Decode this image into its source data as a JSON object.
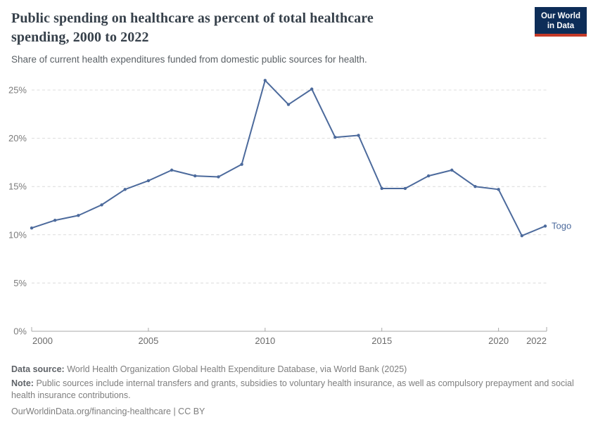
{
  "header": {
    "title_line1": "Public spending on healthcare as percent of total healthcare",
    "title_line2": "spending, 2000 to 2022",
    "subtitle": "Share of current health expenditures funded from domestic public sources for health."
  },
  "logo": {
    "line1": "Our World",
    "line2": "in Data",
    "bg_color": "#0d2d58",
    "accent_color": "#c53a28"
  },
  "chart_data": {
    "type": "line",
    "title": "Public spending on healthcare as percent of total healthcare spending, 2000 to 2022",
    "x": [
      2000,
      2001,
      2002,
      2003,
      2004,
      2005,
      2006,
      2007,
      2008,
      2009,
      2010,
      2011,
      2012,
      2013,
      2014,
      2015,
      2016,
      2017,
      2018,
      2019,
      2020,
      2021,
      2022
    ],
    "series": [
      {
        "name": "Togo",
        "color": "#4C6A9C",
        "values": [
          10.7,
          11.5,
          12.0,
          13.1,
          14.7,
          15.6,
          16.7,
          16.1,
          16.0,
          17.3,
          26.0,
          23.5,
          25.1,
          20.1,
          20.3,
          14.8,
          14.8,
          16.1,
          16.7,
          15.0,
          14.7,
          9.9,
          10.9
        ]
      }
    ],
    "unit": "%",
    "xlim": [
      2000,
      2022
    ],
    "ylim": [
      0,
      25
    ],
    "y_ticks": [
      0,
      5,
      10,
      15,
      20,
      25
    ],
    "y_tick_labels": [
      "0%",
      "5%",
      "10%",
      "15%",
      "20%",
      "25%"
    ],
    "x_ticks": [
      2000,
      2005,
      2010,
      2015,
      2020,
      2022
    ],
    "grid": "horizontal-dashed",
    "legend_position": "end-of-line",
    "colors": {
      "grid": "#dcdcdc",
      "axis": "#a8a8a8",
      "y_tick_label": "#7c7c7c",
      "x_tick_label": "#6b6b6b"
    }
  },
  "footer": {
    "source_label": "Data source:",
    "source_text": "World Health Organization Global Health Expenditure Database, via World Bank (2025)",
    "note_label": "Note:",
    "note_text": "Public sources include internal transfers and grants, subsidies to voluntary health insurance, as well as compulsory prepayment and social health insurance contributions.",
    "link_text": "OurWorldinData.org/financing-healthcare | CC BY"
  }
}
